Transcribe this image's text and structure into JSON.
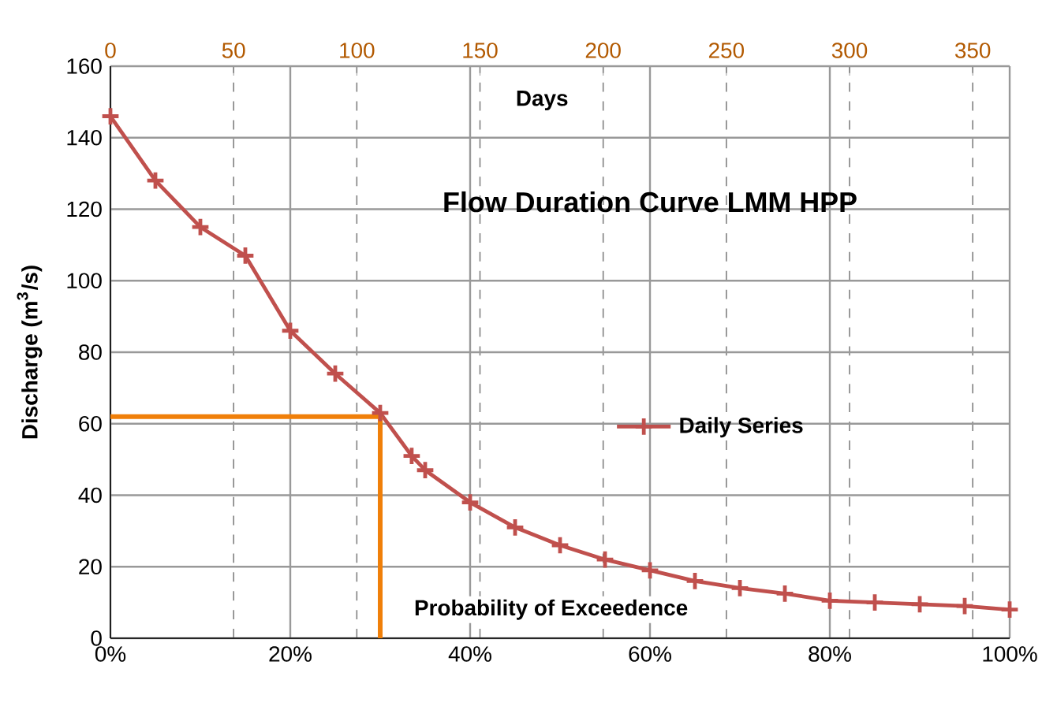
{
  "chart_data": {
    "type": "line",
    "title": "Flow Duration Curve LMM HPP",
    "xlabel": "Probability of Exceedence",
    "ylabel": "Discharge (m$^{3}$/s)",
    "x2label": "Days",
    "x": [
      0,
      5,
      10,
      15,
      20,
      25,
      30,
      33.5,
      35,
      40,
      45,
      50,
      55,
      60,
      65,
      70,
      75,
      80,
      85,
      90,
      95,
      100
    ],
    "series": [
      {
        "name": "Daily Series",
        "color": "#c0504d",
        "values": [
          146,
          128,
          115,
          107,
          86,
          74,
          63,
          51,
          47,
          38,
          31,
          26,
          22,
          19,
          16,
          14,
          12.5,
          10.5,
          10,
          9.5,
          9,
          8
        ]
      }
    ],
    "xlim": [
      0,
      100
    ],
    "xticks": [
      {
        "value": 0,
        "label": "0%"
      },
      {
        "value": 20,
        "label": "20%"
      },
      {
        "value": 40,
        "label": "40%"
      },
      {
        "value": 60,
        "label": "60%"
      },
      {
        "value": 80,
        "label": "80%"
      },
      {
        "value": 100,
        "label": "100%"
      }
    ],
    "x2lim": [
      0,
      365
    ],
    "x2ticks": [
      0,
      50,
      100,
      150,
      200,
      250,
      300,
      350
    ],
    "ylim": [
      0,
      160
    ],
    "yticks": [
      0,
      20,
      40,
      60,
      80,
      100,
      120,
      140,
      160
    ],
    "ref_lines": [
      {
        "axis": "y",
        "value": 62,
        "color": "#f07f09"
      },
      {
        "axis": "x",
        "value": 30,
        "color": "#f07f09"
      }
    ],
    "grid": true,
    "legend": "right",
    "marker": "cross",
    "line_style": "solid"
  }
}
